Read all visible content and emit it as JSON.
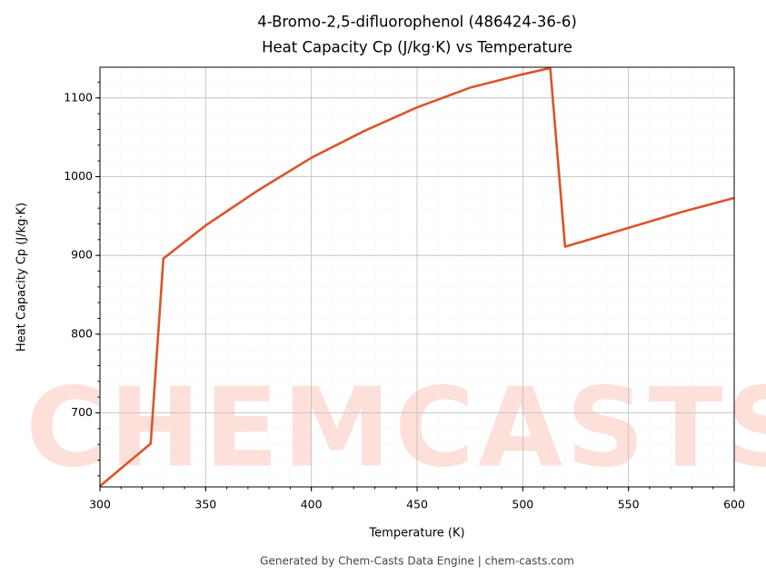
{
  "chart_data": {
    "type": "line",
    "title": "4-Bromo-2,5-difluorophenol (486424-36-6)",
    "subtitle": "Heat Capacity Cp (J/kg·K) vs Temperature",
    "x_label": "Temperature (K)",
    "y_label": "Heat Capacity Cp (J/kg·K)",
    "footer": "Generated by Chem-Casts Data Engine | chem-casts.com",
    "watermark": "CHEMCASTS",
    "x": [
      300,
      324,
      330,
      350,
      375,
      400,
      425,
      450,
      475,
      500,
      513,
      520,
      550,
      575,
      600
    ],
    "series": [
      {
        "name": "Cp",
        "color": "#d9552a",
        "values": [
          607,
          661,
          896,
          938,
          983,
          1024,
          1058,
          1088,
          1113,
          1130,
          1138,
          911,
          935,
          955,
          973
        ]
      }
    ],
    "xlim": [
      300,
      600
    ],
    "xticks": [
      300,
      350,
      400,
      450,
      500,
      550,
      600
    ],
    "ylim": [
      606,
      1139
    ],
    "yticks": [
      700,
      800,
      900,
      1000,
      1100
    ],
    "grid": true
  }
}
